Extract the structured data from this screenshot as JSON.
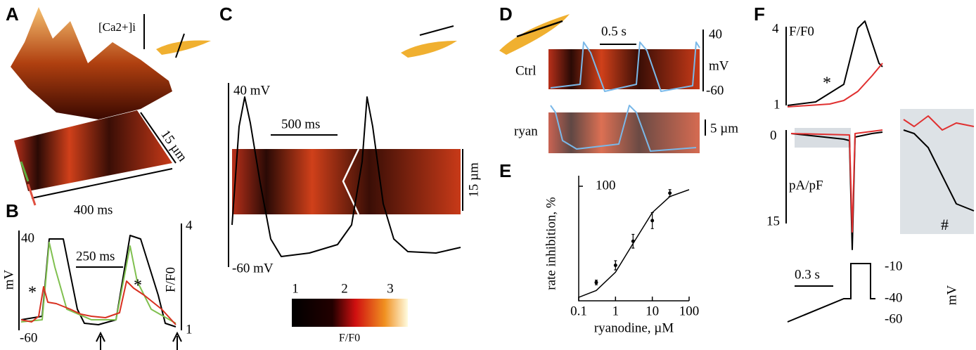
{
  "panels": {
    "A": {
      "letter": "A",
      "ca_label": "[Ca2+]i",
      "space_scale": "15 µm",
      "time_scale": "400 ms"
    },
    "B": {
      "letter": "B",
      "v_top": "40",
      "v_bottom": "-60",
      "v_unit": "mV",
      "time_scale": "250 ms",
      "f_top": "4",
      "f_bottom": "1",
      "f_unit": "F/F0",
      "marks": [
        "*",
        "*"
      ]
    },
    "C": {
      "letter": "C",
      "v_top": "40 mV",
      "v_bottom": "-60 mV",
      "time_scale": "500 ms",
      "space_scale": "15 µm",
      "colorbar_ticks": [
        "1",
        "2",
        "3"
      ],
      "colorbar_label": "F/F0"
    },
    "D": {
      "letter": "D",
      "time_scale": "0.5 s",
      "v_top": "40",
      "v_unit": "mV",
      "v_bottom": "-60",
      "rows": [
        "Ctrl",
        "ryan"
      ],
      "space_scale": "5 µm"
    },
    "E": {
      "letter": "E"
    },
    "F": {
      "letter": "F",
      "f_top": "4",
      "f_unit": "F/F0",
      "f_bottom": "1",
      "mark": "*",
      "i_top": "0",
      "i_unit": "pA/pF",
      "i_bottom": "15",
      "inset_mark": "#",
      "time_scale": "0.3 s",
      "protocol_levels": [
        "-10",
        "-40",
        "-60"
      ],
      "protocol_unit": "mV"
    }
  },
  "chart_data": {
    "type": "scatter",
    "ylabel": "rate inhibition, %",
    "xlabel": "ryanodine, µM",
    "log_x": true,
    "xlim": [
      0.1,
      100
    ],
    "xticks": [
      0.1,
      1,
      10,
      100
    ],
    "ylim": [
      0,
      100
    ],
    "yticks": [
      100
    ],
    "points": {
      "x": [
        0.3,
        1,
        3,
        10,
        30
      ],
      "values": [
        16,
        31,
        52,
        70,
        94
      ],
      "errors": [
        2,
        4,
        6,
        7,
        3
      ],
      "color": "#000000"
    },
    "fit": {
      "x": [
        0.1,
        0.3,
        1,
        3,
        10,
        30,
        100
      ],
      "values": [
        3,
        9,
        25,
        50,
        77,
        91,
        97
      ],
      "color": "#000000"
    }
  }
}
